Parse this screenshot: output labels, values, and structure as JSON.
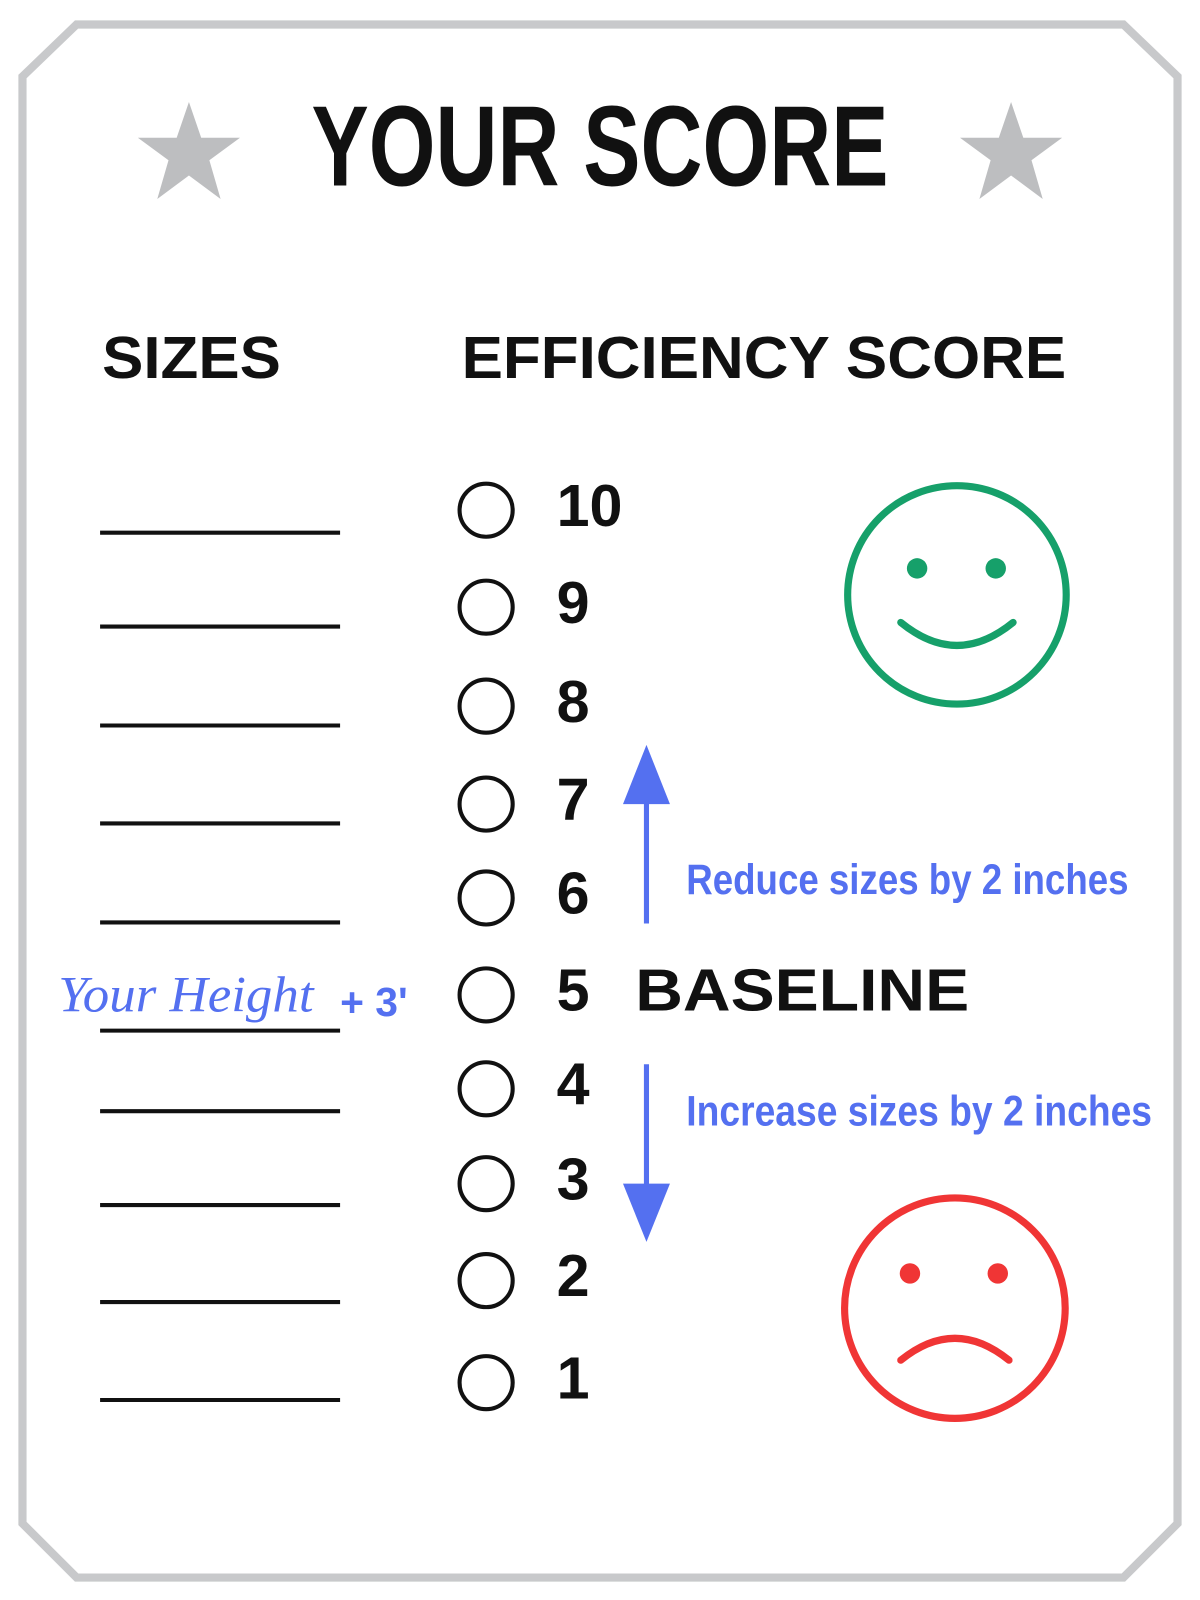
{
  "title": "YOUR SCORE",
  "columns": {
    "sizes": "SIZES",
    "efficiency": "EFFICIENCY SCORE"
  },
  "scores": [
    10,
    9,
    8,
    7,
    6,
    5,
    4,
    3,
    2,
    1
  ],
  "baseline": "BASELINE",
  "annotations": {
    "reduce": "Reduce sizes by 2 inches",
    "increase": "Increase sizes by 2 inches",
    "height": "Your Height",
    "height_add": "+ 3'"
  }
}
